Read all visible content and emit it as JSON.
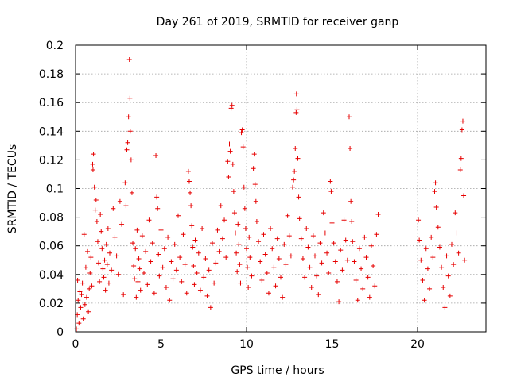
{
  "chart_data": {
    "type": "scatter",
    "title": "Day 261 of 2019, SRMTID for receiver ganp",
    "xlabel": "GPS time / hours",
    "ylabel": "SRMTID / TECUs",
    "xlim": [
      0,
      24
    ],
    "ylim": [
      0,
      0.2
    ],
    "xticks": [
      0,
      5,
      10,
      15,
      20
    ],
    "xtick_labels": [
      "0",
      "5",
      "10",
      "15",
      "20"
    ],
    "yticks": [
      0,
      0.02,
      0.04,
      0.06,
      0.08,
      0.1,
      0.12,
      0.14,
      0.16,
      0.18,
      0.2
    ],
    "ytick_labels": [
      "0",
      "0.02",
      "0.04",
      "0.06",
      "0.08",
      "0.1",
      "0.12",
      "0.14",
      "0.16",
      "0.18",
      "0.2"
    ],
    "grid": true,
    "marker": "+",
    "color": "#e60000",
    "series": [
      {
        "name": "SRMTID",
        "points": [
          [
            0.05,
            0.002
          ],
          [
            0.1,
            0.012
          ],
          [
            0.12,
            0.036
          ],
          [
            0.15,
            0.022
          ],
          [
            0.2,
            0.006
          ],
          [
            0.25,
            0.028
          ],
          [
            0.3,
            0.017
          ],
          [
            0.35,
            0.026
          ],
          [
            0.4,
            0.034
          ],
          [
            0.45,
            0.009
          ],
          [
            0.5,
            0.068
          ],
          [
            0.55,
            0.019
          ],
          [
            0.6,
            0.045
          ],
          [
            0.65,
            0.024
          ],
          [
            0.7,
            0.056
          ],
          [
            0.75,
            0.014
          ],
          [
            0.8,
            0.03
          ],
          [
            0.85,
            0.041
          ],
          [
            0.9,
            0.052
          ],
          [
            0.95,
            0.032
          ],
          [
            1.0,
            0.117
          ],
          [
            1.02,
            0.113
          ],
          [
            1.05,
            0.124
          ],
          [
            1.1,
            0.101
          ],
          [
            1.15,
            0.085
          ],
          [
            1.2,
            0.092
          ],
          [
            1.25,
            0.077
          ],
          [
            1.3,
            0.063
          ],
          [
            1.35,
            0.048
          ],
          [
            1.4,
            0.035
          ],
          [
            1.45,
            0.082
          ],
          [
            1.5,
            0.07
          ],
          [
            1.55,
            0.058
          ],
          [
            1.6,
            0.044
          ],
          [
            1.65,
            0.038
          ],
          [
            1.7,
            0.05
          ],
          [
            1.75,
            0.029
          ],
          [
            1.8,
            0.061
          ],
          [
            1.85,
            0.047
          ],
          [
            1.9,
            0.072
          ],
          [
            1.95,
            0.034
          ],
          [
            2.0,
            0.055
          ],
          [
            2.1,
            0.043
          ],
          [
            2.2,
            0.086
          ],
          [
            2.3,
            0.066
          ],
          [
            2.4,
            0.053
          ],
          [
            2.5,
            0.04
          ],
          [
            2.6,
            0.091
          ],
          [
            2.7,
            0.075
          ],
          [
            2.8,
            0.026
          ],
          [
            2.9,
            0.104
          ],
          [
            2.95,
            0.088
          ],
          [
            3.0,
            0.127
          ],
          [
            3.05,
            0.132
          ],
          [
            3.1,
            0.15
          ],
          [
            3.15,
            0.19
          ],
          [
            3.18,
            0.163
          ],
          [
            3.2,
            0.14
          ],
          [
            3.25,
            0.12
          ],
          [
            3.3,
            0.097
          ],
          [
            3.35,
            0.062
          ],
          [
            3.4,
            0.046
          ],
          [
            3.45,
            0.037
          ],
          [
            3.5,
            0.058
          ],
          [
            3.55,
            0.024
          ],
          [
            3.6,
            0.071
          ],
          [
            3.65,
            0.035
          ],
          [
            3.7,
            0.051
          ],
          [
            3.75,
            0.044
          ],
          [
            3.8,
            0.029
          ],
          [
            3.9,
            0.067
          ],
          [
            4.0,
            0.041
          ],
          [
            4.1,
            0.056
          ],
          [
            4.2,
            0.033
          ],
          [
            4.3,
            0.078
          ],
          [
            4.4,
            0.049
          ],
          [
            4.5,
            0.062
          ],
          [
            4.6,
            0.027
          ],
          [
            4.7,
            0.123
          ],
          [
            4.75,
            0.094
          ],
          [
            4.8,
            0.086
          ],
          [
            4.85,
            0.054
          ],
          [
            4.9,
            0.039
          ],
          [
            5.0,
            0.071
          ],
          [
            5.1,
            0.045
          ],
          [
            5.2,
            0.058
          ],
          [
            5.3,
            0.031
          ],
          [
            5.4,
            0.066
          ],
          [
            5.5,
            0.022
          ],
          [
            5.6,
            0.049
          ],
          [
            5.7,
            0.037
          ],
          [
            5.8,
            0.061
          ],
          [
            5.9,
            0.043
          ],
          [
            6.0,
            0.081
          ],
          [
            6.1,
            0.052
          ],
          [
            6.2,
            0.035
          ],
          [
            6.3,
            0.068
          ],
          [
            6.4,
            0.047
          ],
          [
            6.5,
            0.027
          ],
          [
            6.6,
            0.112
          ],
          [
            6.65,
            0.105
          ],
          [
            6.7,
            0.097
          ],
          [
            6.75,
            0.088
          ],
          [
            6.8,
            0.074
          ],
          [
            6.85,
            0.059
          ],
          [
            6.9,
            0.046
          ],
          [
            6.95,
            0.033
          ],
          [
            7.0,
            0.064
          ],
          [
            7.1,
            0.041
          ],
          [
            7.2,
            0.055
          ],
          [
            7.3,
            0.029
          ],
          [
            7.4,
            0.072
          ],
          [
            7.5,
            0.038
          ],
          [
            7.6,
            0.051
          ],
          [
            7.7,
            0.025
          ],
          [
            7.8,
            0.043
          ],
          [
            7.9,
            0.017
          ],
          [
            8.0,
            0.062
          ],
          [
            8.1,
            0.034
          ],
          [
            8.2,
            0.048
          ],
          [
            8.3,
            0.071
          ],
          [
            8.4,
            0.056
          ],
          [
            8.5,
            0.088
          ],
          [
            8.6,
            0.065
          ],
          [
            8.7,
            0.078
          ],
          [
            8.8,
            0.052
          ],
          [
            8.9,
            0.119
          ],
          [
            8.95,
            0.108
          ],
          [
            9.0,
            0.131
          ],
          [
            9.05,
            0.126
          ],
          [
            9.1,
            0.156
          ],
          [
            9.15,
            0.158
          ],
          [
            9.2,
            0.117
          ],
          [
            9.25,
            0.098
          ],
          [
            9.3,
            0.083
          ],
          [
            9.35,
            0.069
          ],
          [
            9.4,
            0.055
          ],
          [
            9.45,
            0.042
          ],
          [
            9.5,
            0.075
          ],
          [
            9.55,
            0.061
          ],
          [
            9.6,
            0.047
          ],
          [
            9.65,
            0.034
          ],
          [
            9.7,
            0.139
          ],
          [
            9.75,
            0.141
          ],
          [
            9.8,
            0.129
          ],
          [
            9.85,
            0.101
          ],
          [
            9.9,
            0.086
          ],
          [
            9.95,
            0.072
          ],
          [
            10.0,
            0.058
          ],
          [
            10.05,
            0.045
          ],
          [
            10.1,
            0.031
          ],
          [
            10.15,
            0.066
          ],
          [
            10.2,
            0.052
          ],
          [
            10.3,
            0.039
          ],
          [
            10.4,
            0.114
          ],
          [
            10.45,
            0.124
          ],
          [
            10.5,
            0.103
          ],
          [
            10.55,
            0.091
          ],
          [
            10.6,
            0.077
          ],
          [
            10.7,
            0.063
          ],
          [
            10.8,
            0.049
          ],
          [
            10.9,
            0.036
          ],
          [
            11.0,
            0.068
          ],
          [
            11.1,
            0.054
          ],
          [
            11.2,
            0.041
          ],
          [
            11.3,
            0.027
          ],
          [
            11.4,
            0.072
          ],
          [
            11.5,
            0.058
          ],
          [
            11.6,
            0.045
          ],
          [
            11.7,
            0.032
          ],
          [
            11.8,
            0.065
          ],
          [
            11.9,
            0.051
          ],
          [
            12.0,
            0.038
          ],
          [
            12.1,
            0.024
          ],
          [
            12.2,
            0.061
          ],
          [
            12.3,
            0.047
          ],
          [
            12.4,
            0.081
          ],
          [
            12.5,
            0.067
          ],
          [
            12.6,
            0.053
          ],
          [
            12.7,
            0.101
          ],
          [
            12.75,
            0.106
          ],
          [
            12.8,
            0.112
          ],
          [
            12.85,
            0.128
          ],
          [
            12.9,
            0.153
          ],
          [
            12.92,
            0.166
          ],
          [
            12.95,
            0.155
          ],
          [
            13.0,
            0.121
          ],
          [
            13.05,
            0.094
          ],
          [
            13.1,
            0.079
          ],
          [
            13.2,
            0.065
          ],
          [
            13.3,
            0.051
          ],
          [
            13.4,
            0.038
          ],
          [
            13.5,
            0.072
          ],
          [
            13.6,
            0.059
          ],
          [
            13.7,
            0.045
          ],
          [
            13.8,
            0.031
          ],
          [
            13.9,
            0.067
          ],
          [
            14.0,
            0.053
          ],
          [
            14.1,
            0.039
          ],
          [
            14.2,
            0.026
          ],
          [
            14.3,
            0.062
          ],
          [
            14.4,
            0.048
          ],
          [
            14.5,
            0.083
          ],
          [
            14.6,
            0.069
          ],
          [
            14.7,
            0.055
          ],
          [
            14.8,
            0.041
          ],
          [
            14.9,
            0.105
          ],
          [
            14.95,
            0.098
          ],
          [
            15.0,
            0.076
          ],
          [
            15.1,
            0.062
          ],
          [
            15.2,
            0.049
          ],
          [
            15.3,
            0.035
          ],
          [
            15.4,
            0.021
          ],
          [
            15.5,
            0.057
          ],
          [
            15.6,
            0.043
          ],
          [
            15.7,
            0.078
          ],
          [
            15.8,
            0.064
          ],
          [
            15.9,
            0.05
          ],
          [
            16.0,
            0.15
          ],
          [
            16.05,
            0.128
          ],
          [
            16.1,
            0.091
          ],
          [
            16.15,
            0.077
          ],
          [
            16.2,
            0.063
          ],
          [
            16.3,
            0.049
          ],
          [
            16.4,
            0.036
          ],
          [
            16.5,
            0.022
          ],
          [
            16.6,
            0.058
          ],
          [
            16.7,
            0.044
          ],
          [
            16.8,
            0.03
          ],
          [
            16.9,
            0.066
          ],
          [
            17.0,
            0.052
          ],
          [
            17.1,
            0.038
          ],
          [
            17.2,
            0.024
          ],
          [
            17.3,
            0.06
          ],
          [
            17.4,
            0.046
          ],
          [
            17.5,
            0.032
          ],
          [
            17.6,
            0.068
          ],
          [
            17.7,
            0.082
          ],
          [
            20.05,
            0.078
          ],
          [
            20.1,
            0.064
          ],
          [
            20.2,
            0.05
          ],
          [
            20.3,
            0.036
          ],
          [
            20.4,
            0.022
          ],
          [
            20.5,
            0.058
          ],
          [
            20.6,
            0.044
          ],
          [
            20.7,
            0.03
          ],
          [
            20.8,
            0.066
          ],
          [
            20.9,
            0.052
          ],
          [
            21.0,
            0.098
          ],
          [
            21.05,
            0.104
          ],
          [
            21.1,
            0.087
          ],
          [
            21.2,
            0.073
          ],
          [
            21.3,
            0.059
          ],
          [
            21.4,
            0.045
          ],
          [
            21.5,
            0.031
          ],
          [
            21.6,
            0.017
          ],
          [
            21.7,
            0.053
          ],
          [
            21.8,
            0.039
          ],
          [
            21.9,
            0.025
          ],
          [
            22.0,
            0.061
          ],
          [
            22.1,
            0.047
          ],
          [
            22.2,
            0.083
          ],
          [
            22.3,
            0.069
          ],
          [
            22.4,
            0.055
          ],
          [
            22.5,
            0.113
          ],
          [
            22.55,
            0.121
          ],
          [
            22.6,
            0.141
          ],
          [
            22.65,
            0.147
          ],
          [
            22.7,
            0.095
          ],
          [
            22.75,
            0.05
          ]
        ]
      }
    ]
  }
}
